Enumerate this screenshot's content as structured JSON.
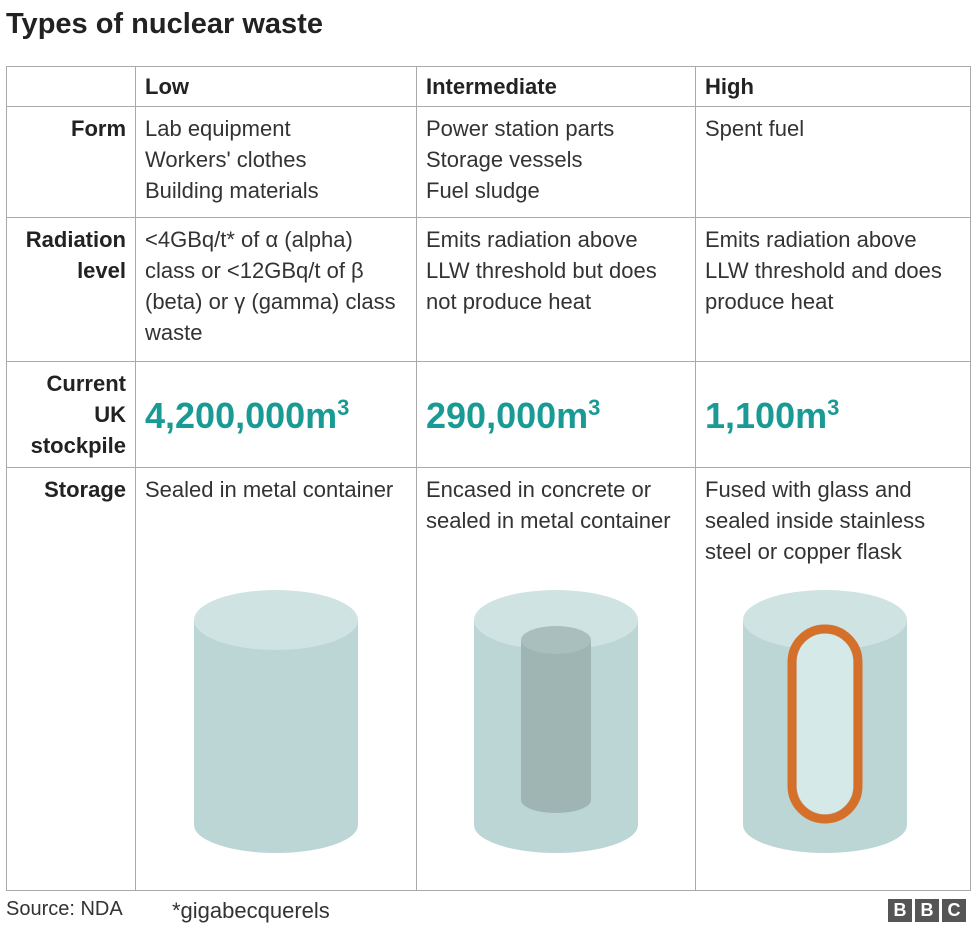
{
  "title": "Types of nuclear waste",
  "columns": [
    "Low",
    "Intermediate",
    "High"
  ],
  "rows": {
    "form": {
      "label": "Form",
      "values": [
        "Lab equipment\nWorkers' clothes\nBuilding materials",
        "Power station parts\nStorage vessels\nFuel sludge",
        "Spent fuel"
      ]
    },
    "radiation": {
      "label": "Radiation level",
      "values": [
        "<4GBq/t* of α (alpha) class or <12GBq/t of β (beta) or γ (gamma) class waste",
        "Emits radiation above LLW threshold but does not produce heat",
        "Emits radiation above LLW threshold and does produce heat"
      ]
    },
    "stockpile": {
      "label": "Current UK stockpile",
      "values": [
        "4,200,000",
        "290,000",
        "1,100"
      ],
      "unit": "m",
      "unit_sup": "3"
    },
    "storage": {
      "label": "Storage",
      "values": [
        "Sealed in metal container",
        "Encased in concrete or sealed in metal container",
        "Fused with glass and sealed inside stainless steel or copper flask"
      ]
    }
  },
  "colors": {
    "accent": "#1a9a94",
    "cylinder": "#c4dcdb",
    "inner_core": "#9fb5b4",
    "flask": "#d4702a"
  },
  "footer": {
    "source": "Source: NDA",
    "note": "*gigabecquerels",
    "logo": "BBC"
  }
}
